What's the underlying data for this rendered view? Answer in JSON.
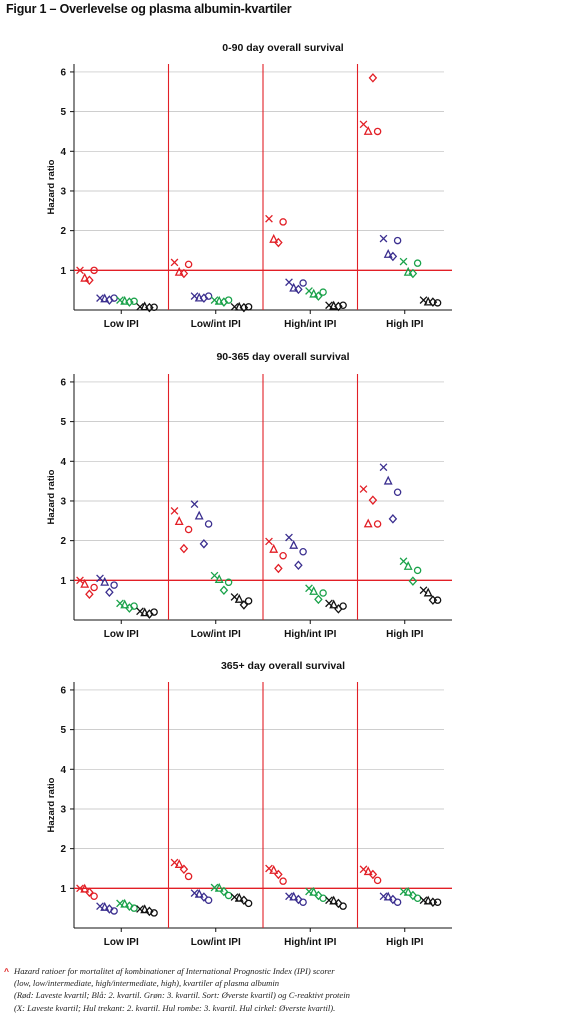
{
  "figure_title": "Figur 1 – Overlevelse og plasma albumin-kvartiler",
  "footnote": {
    "marker": "^",
    "lines": [
      "Hazard ratioer for mortalitet af kombinationer af International Prognostic Index (IPI) scorer",
      "(low, low/intermediate, high/intermediate, high), kvartiler af plasma albumin",
      "(Rød: Laveste kvartil; Blå: 2. kvartil. Grøn: 3. kvartil. Sort: Øverste kvartil) og C-reaktivt protein",
      "(X: Laveste kvartil; Hul trekant: 2. kvartil. Hul rombe: 3. kvartil. Hul cirkel: Øverste kvartil)."
    ]
  },
  "colors": {
    "red": "#e21f26",
    "blue": "#3b2f8f",
    "green": "#1aa24a",
    "black": "#111111",
    "axis": "#111111",
    "grid": "#bdbdbd"
  },
  "marker_order": [
    "x",
    "triangle",
    "diamond",
    "circle"
  ],
  "color_order": [
    "red",
    "blue",
    "green",
    "black"
  ],
  "chart_data": [
    {
      "type": "scatter",
      "title": "0-90 day overall survival",
      "ylabel": "Hazard ratio",
      "ylim": [
        0,
        6.2
      ],
      "yticks": [
        1,
        2,
        3,
        4,
        5,
        6
      ],
      "grid": true,
      "reference_line": 1,
      "categories": [
        "Low IPI",
        "Low/int IPI",
        "High/int IPI",
        "High IPI"
      ],
      "values": [
        [
          [
            1.0,
            0.8,
            0.75,
            1.0
          ],
          [
            0.3,
            0.28,
            0.25,
            0.3
          ],
          [
            0.25,
            0.22,
            0.2,
            0.22
          ],
          [
            0.08,
            0.08,
            0.06,
            0.07
          ]
        ],
        [
          [
            1.2,
            0.95,
            0.92,
            1.15
          ],
          [
            0.35,
            0.3,
            0.3,
            0.35
          ],
          [
            0.25,
            0.22,
            0.2,
            0.25
          ],
          [
            0.08,
            0.07,
            0.06,
            0.08
          ]
        ],
        [
          [
            2.3,
            1.78,
            1.7,
            2.22
          ],
          [
            0.7,
            0.55,
            0.52,
            0.68
          ],
          [
            0.48,
            0.4,
            0.35,
            0.45
          ],
          [
            0.12,
            0.1,
            0.09,
            0.12
          ]
        ],
        [
          [
            4.68,
            4.5,
            5.85,
            4.5
          ],
          [
            1.8,
            1.4,
            1.35,
            1.75
          ],
          [
            1.22,
            0.95,
            0.92,
            1.18
          ],
          [
            0.25,
            0.2,
            0.2,
            0.18
          ]
        ]
      ]
    },
    {
      "type": "scatter",
      "title": "90-365 day overall survival",
      "ylabel": "Hazard ratio",
      "ylim": [
        0,
        6.2
      ],
      "yticks": [
        1,
        2,
        3,
        4,
        5,
        6
      ],
      "grid": true,
      "reference_line": 1,
      "categories": [
        "Low IPI",
        "Low/int IPI",
        "High/int IPI",
        "High IPI"
      ],
      "values": [
        [
          [
            1.0,
            0.9,
            0.65,
            0.82
          ],
          [
            1.05,
            0.95,
            0.7,
            0.88
          ],
          [
            0.42,
            0.38,
            0.3,
            0.35
          ],
          [
            0.22,
            0.18,
            0.15,
            0.2
          ]
        ],
        [
          [
            2.75,
            2.48,
            1.8,
            2.28
          ],
          [
            2.92,
            2.62,
            1.92,
            2.42
          ],
          [
            1.12,
            1.02,
            0.75,
            0.95
          ],
          [
            0.58,
            0.52,
            0.38,
            0.48
          ]
        ],
        [
          [
            1.98,
            1.78,
            1.3,
            1.62
          ],
          [
            2.08,
            1.88,
            1.38,
            1.72
          ],
          [
            0.8,
            0.72,
            0.52,
            0.68
          ],
          [
            0.42,
            0.38,
            0.28,
            0.35
          ]
        ],
        [
          [
            3.3,
            2.42,
            3.02,
            2.42
          ],
          [
            3.85,
            3.5,
            2.55,
            3.22
          ],
          [
            1.48,
            1.35,
            0.98,
            1.25
          ],
          [
            0.75,
            0.68,
            0.5,
            0.5
          ]
        ]
      ]
    },
    {
      "type": "scatter",
      "title": "365+ day overall survival",
      "ylabel": "Hazard ratio",
      "ylim": [
        0,
        6.2
      ],
      "yticks": [
        1,
        2,
        3,
        4,
        5,
        6
      ],
      "grid": true,
      "reference_line": 1,
      "categories": [
        "Low IPI",
        "Low/int IPI",
        "High/int IPI",
        "High IPI"
      ],
      "values": [
        [
          [
            1.0,
            0.98,
            0.9,
            0.8
          ],
          [
            0.55,
            0.52,
            0.48,
            0.43
          ],
          [
            0.62,
            0.6,
            0.55,
            0.5
          ],
          [
            0.48,
            0.46,
            0.42,
            0.38
          ]
        ],
        [
          [
            1.65,
            1.6,
            1.48,
            1.3
          ],
          [
            0.88,
            0.85,
            0.78,
            0.7
          ],
          [
            1.02,
            1.0,
            0.92,
            0.82
          ],
          [
            0.78,
            0.75,
            0.7,
            0.62
          ]
        ],
        [
          [
            1.5,
            1.45,
            1.35,
            1.18
          ],
          [
            0.8,
            0.78,
            0.72,
            0.65
          ],
          [
            0.92,
            0.9,
            0.82,
            0.75
          ],
          [
            0.7,
            0.68,
            0.62,
            0.55
          ]
        ],
        [
          [
            1.48,
            1.42,
            1.35,
            1.2
          ],
          [
            0.8,
            0.78,
            0.72,
            0.65
          ],
          [
            0.92,
            0.9,
            0.82,
            0.75
          ],
          [
            0.7,
            0.68,
            0.65,
            0.65
          ]
        ]
      ]
    }
  ]
}
